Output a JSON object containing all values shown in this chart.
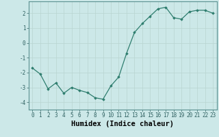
{
  "x": [
    0,
    1,
    2,
    3,
    4,
    5,
    6,
    7,
    8,
    9,
    10,
    11,
    12,
    13,
    14,
    15,
    16,
    17,
    18,
    19,
    20,
    21,
    22,
    23
  ],
  "y": [
    -1.7,
    -2.1,
    -3.1,
    -2.7,
    -3.4,
    -3.0,
    -3.2,
    -3.35,
    -3.7,
    -3.8,
    -2.9,
    -2.3,
    -0.7,
    0.7,
    1.3,
    1.8,
    2.3,
    2.4,
    1.7,
    1.6,
    2.1,
    2.2,
    2.2,
    2.0
  ],
  "xlabel": "Humidex (Indice chaleur)",
  "xlim": [
    -0.5,
    23.5
  ],
  "ylim": [
    -4.5,
    2.8
  ],
  "yticks": [
    -4,
    -3,
    -2,
    -1,
    0,
    1,
    2
  ],
  "xticks": [
    0,
    1,
    2,
    3,
    4,
    5,
    6,
    7,
    8,
    9,
    10,
    11,
    12,
    13,
    14,
    15,
    16,
    17,
    18,
    19,
    20,
    21,
    22,
    23
  ],
  "line_color": "#2e7d6e",
  "marker": "D",
  "marker_size": 1.8,
  "bg_color": "#cce8e8",
  "grid_color": "#b8d4d0",
  "tick_label_fontsize": 5.5,
  "xlabel_fontsize": 7.5,
  "spine_color": "#5a9090"
}
